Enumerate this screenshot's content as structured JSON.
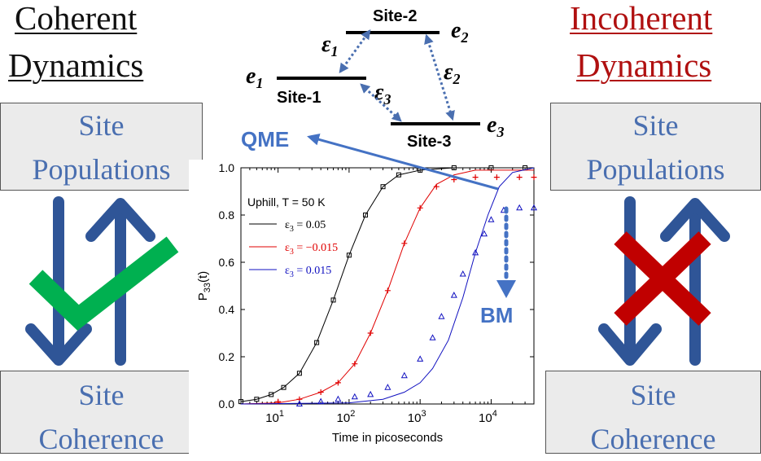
{
  "left": {
    "heading_line1": "Coherent",
    "heading_line2": "Dynamics",
    "top_box": {
      "line1": "Site",
      "line2": "Populations"
    },
    "bottom_box": {
      "line1": "Site",
      "line2": "Coherence"
    }
  },
  "right": {
    "heading_line1": "Incoherent",
    "heading_line2": "Dynamics",
    "top_box": {
      "line1": "Site",
      "line2": "Populations"
    },
    "bottom_box": {
      "line1": "Site",
      "line2": "Coherence"
    }
  },
  "energy_diagram": {
    "site1": "Site-1",
    "site2": "Site-2",
    "site3": "Site-3",
    "e1": "e",
    "e2": "e",
    "e3": "e",
    "e1_sub": "1",
    "e2_sub": "2",
    "e3_sub": "3",
    "eps1": "ε",
    "eps2": "ε",
    "eps3": "ε",
    "eps1_sub": "1",
    "eps2_sub": "2",
    "eps3_sub": "3"
  },
  "annotations": {
    "qme": "QME",
    "bm": "BM"
  },
  "colors": {
    "arrow_blue": "#2f5597",
    "check_green": "#00b050",
    "cross_red": "#c00000",
    "label_blue": "#4472c4"
  },
  "icons": [
    "check-icon",
    "cross-icon",
    "up-arrow-icon",
    "down-arrow-icon"
  ],
  "chart_data": {
    "type": "scatter",
    "xlabel": "Time in picoseconds",
    "ylabel": "P",
    "ylabel_sub": "33",
    "ylabel_suffix": "(t)",
    "xscale": "log",
    "xlim": [
      3,
      40000
    ],
    "ylim": [
      0.0,
      1.0
    ],
    "xticks": [
      "10",
      "10",
      "10",
      "10"
    ],
    "xtick_exps": [
      "1",
      "2",
      "3",
      "4"
    ],
    "yticks": [
      "0.0",
      "0.2",
      "0.4",
      "0.6",
      "0.8",
      "1.0"
    ],
    "legend_title": "Uphill, T = 50 K",
    "series": [
      {
        "name": "ε",
        "name_sub": "3",
        "name_value": " = 0.05",
        "color": "#000000",
        "marker": "square",
        "points": [
          [
            3,
            0.01
          ],
          [
            5,
            0.02
          ],
          [
            8,
            0.04
          ],
          [
            12,
            0.07
          ],
          [
            20,
            0.13
          ],
          [
            35,
            0.26
          ],
          [
            60,
            0.44
          ],
          [
            100,
            0.63
          ],
          [
            170,
            0.8
          ],
          [
            300,
            0.92
          ],
          [
            500,
            0.97
          ],
          [
            1000,
            0.99
          ],
          [
            3000,
            1.0
          ],
          [
            10000,
            1.0
          ],
          [
            30000,
            1.0
          ]
        ],
        "fit": [
          [
            3,
            0.01
          ],
          [
            5,
            0.02
          ],
          [
            8,
            0.04
          ],
          [
            12,
            0.07
          ],
          [
            20,
            0.13
          ],
          [
            35,
            0.26
          ],
          [
            60,
            0.44
          ],
          [
            100,
            0.63
          ],
          [
            170,
            0.8
          ],
          [
            300,
            0.92
          ],
          [
            500,
            0.97
          ],
          [
            1000,
            0.99
          ],
          [
            3000,
            1.0
          ],
          [
            10000,
            1.0
          ],
          [
            40000,
            1.0
          ]
        ]
      },
      {
        "name": "ε",
        "name_sub": "3",
        "name_value": " = −0.015",
        "color": "#e00000",
        "marker": "plus",
        "points": [
          [
            10,
            0.01
          ],
          [
            20,
            0.02
          ],
          [
            40,
            0.05
          ],
          [
            70,
            0.09
          ],
          [
            120,
            0.17
          ],
          [
            200,
            0.3
          ],
          [
            350,
            0.48
          ],
          [
            600,
            0.68
          ],
          [
            1000,
            0.83
          ],
          [
            1700,
            0.92
          ],
          [
            3000,
            0.95
          ],
          [
            6000,
            0.96
          ],
          [
            12000,
            0.96
          ],
          [
            25000,
            0.96
          ],
          [
            40000,
            0.96
          ]
        ],
        "fit": [
          [
            3,
            0.0
          ],
          [
            10,
            0.005
          ],
          [
            20,
            0.02
          ],
          [
            40,
            0.05
          ],
          [
            70,
            0.09
          ],
          [
            120,
            0.17
          ],
          [
            200,
            0.3
          ],
          [
            350,
            0.48
          ],
          [
            600,
            0.68
          ],
          [
            1000,
            0.83
          ],
          [
            1700,
            0.93
          ],
          [
            3000,
            0.97
          ],
          [
            6000,
            0.99
          ],
          [
            15000,
            0.99
          ],
          [
            40000,
            0.99
          ]
        ]
      },
      {
        "name": "ε",
        "name_sub": "3",
        "name_value": " = 0.015",
        "color": "#1010c0",
        "marker": "triangle",
        "points": [
          [
            20,
            0.0
          ],
          [
            40,
            0.01
          ],
          [
            70,
            0.02
          ],
          [
            120,
            0.03
          ],
          [
            200,
            0.04
          ],
          [
            350,
            0.07
          ],
          [
            600,
            0.12
          ],
          [
            1000,
            0.19
          ],
          [
            1500,
            0.28
          ],
          [
            2000,
            0.37
          ],
          [
            3000,
            0.46
          ],
          [
            4000,
            0.55
          ],
          [
            6000,
            0.64
          ],
          [
            8000,
            0.72
          ],
          [
            10000,
            0.78
          ],
          [
            15000,
            0.82
          ],
          [
            25000,
            0.83
          ],
          [
            40000,
            0.83
          ]
        ],
        "fit": [
          [
            3,
            0.0
          ],
          [
            100,
            0.005
          ],
          [
            300,
            0.02
          ],
          [
            600,
            0.05
          ],
          [
            1000,
            0.09
          ],
          [
            1500,
            0.15
          ],
          [
            2500,
            0.27
          ],
          [
            4000,
            0.45
          ],
          [
            6000,
            0.64
          ],
          [
            9000,
            0.8
          ],
          [
            13000,
            0.92
          ],
          [
            20000,
            0.98
          ],
          [
            40000,
            1.0
          ]
        ]
      }
    ]
  }
}
